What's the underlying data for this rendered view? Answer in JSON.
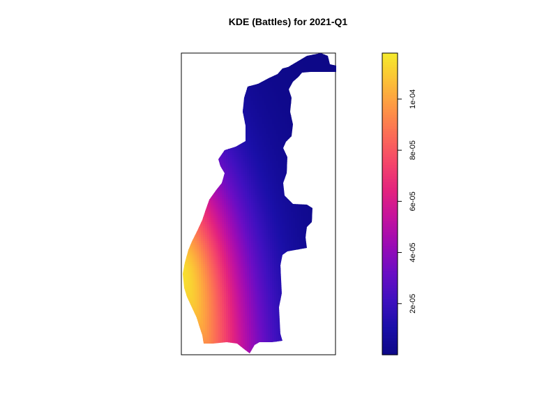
{
  "chart_data": {
    "type": "heatmap",
    "title": "KDE (Battles) for 2021-Q1",
    "colorbar": {
      "min": 0,
      "max": 0.000118,
      "ticks": [
        {
          "value": 2e-05,
          "label": "2e-05"
        },
        {
          "value": 4e-05,
          "label": "4e-05"
        },
        {
          "value": 6e-05,
          "label": "6e-05"
        },
        {
          "value": 8e-05,
          "label": "8e-05"
        },
        {
          "value": 0.0001,
          "label": "1e-04"
        }
      ],
      "palette": [
        "#0d0887",
        "#1a0fa8",
        "#3f10bf",
        "#6a0dc4",
        "#9a0bb5",
        "#c3129e",
        "#e3237e",
        "#f4456a",
        "#fb6b57",
        "#fd9545",
        "#fcc037",
        "#f5ea2c"
      ]
    },
    "surface": {
      "description": "kernel density estimate; highest density at the south-west edge of the region, decreasing toward the north-east",
      "peak_value": 0.000115,
      "peak_location": "west edge, lower-middle",
      "min_value": 0
    },
    "legend_placement": "right",
    "axes_visible": false,
    "box": true
  }
}
